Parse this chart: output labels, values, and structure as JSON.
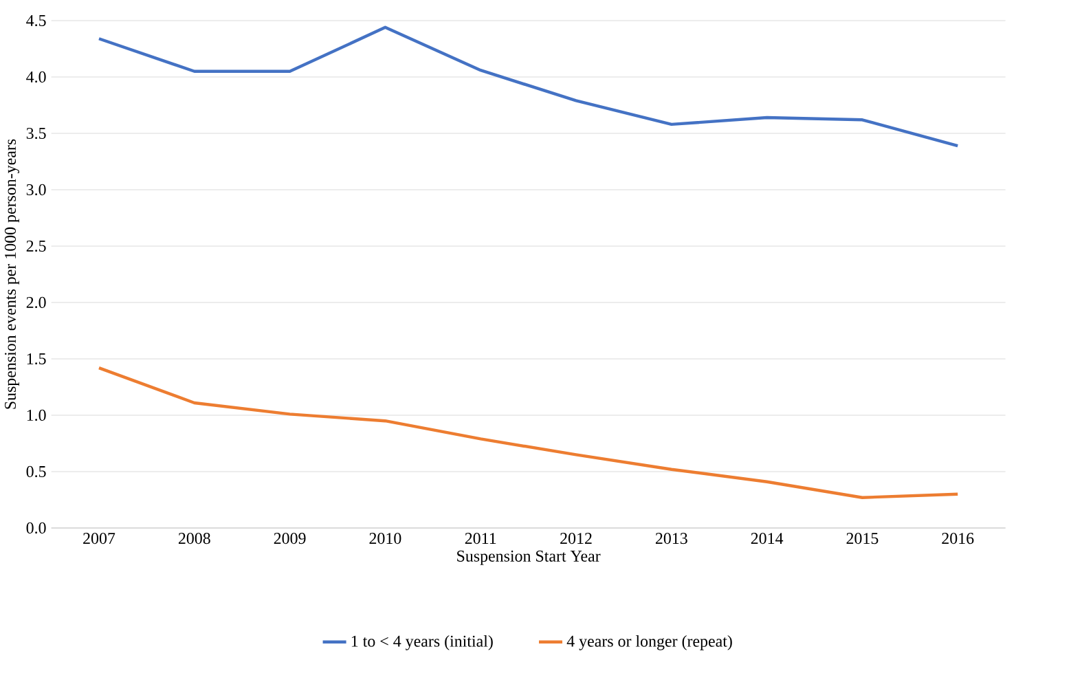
{
  "chart_data": {
    "type": "line",
    "xlabel": "Suspension Start Year",
    "ylabel": "Suspension events per 1000 person-years",
    "categories": [
      "2007",
      "2008",
      "2009",
      "2010",
      "2011",
      "2012",
      "2013",
      "2014",
      "2015",
      "2016"
    ],
    "series": [
      {
        "name": "1 to < 4 years (initial)",
        "color": "#4472c4",
        "values": [
          4.34,
          4.05,
          4.05,
          4.44,
          4.06,
          3.79,
          3.58,
          3.64,
          3.62,
          3.39
        ]
      },
      {
        "name": "4 years or longer (repeat)",
        "color": "#ed7d31",
        "values": [
          1.42,
          1.11,
          1.01,
          0.95,
          0.79,
          0.65,
          0.52,
          0.41,
          0.27,
          0.3
        ]
      }
    ],
    "ylim": [
      0,
      4.5
    ],
    "yticks": [
      {
        "value": 0,
        "label": "0.0"
      },
      {
        "value": 0.5,
        "label": "0.5"
      },
      {
        "value": 1,
        "label": "1.0"
      },
      {
        "value": 1.5,
        "label": "1.5"
      },
      {
        "value": 2,
        "label": "2.0"
      },
      {
        "value": 2.5,
        "label": "2.5"
      },
      {
        "value": 3,
        "label": "3.0"
      },
      {
        "value": 3.5,
        "label": "3.5"
      },
      {
        "value": 4,
        "label": "4.0"
      },
      {
        "value": 4.5,
        "label": "4.5"
      }
    ],
    "grid": "y",
    "legend": "bottom",
    "marker": "none",
    "line_style": "solid"
  }
}
